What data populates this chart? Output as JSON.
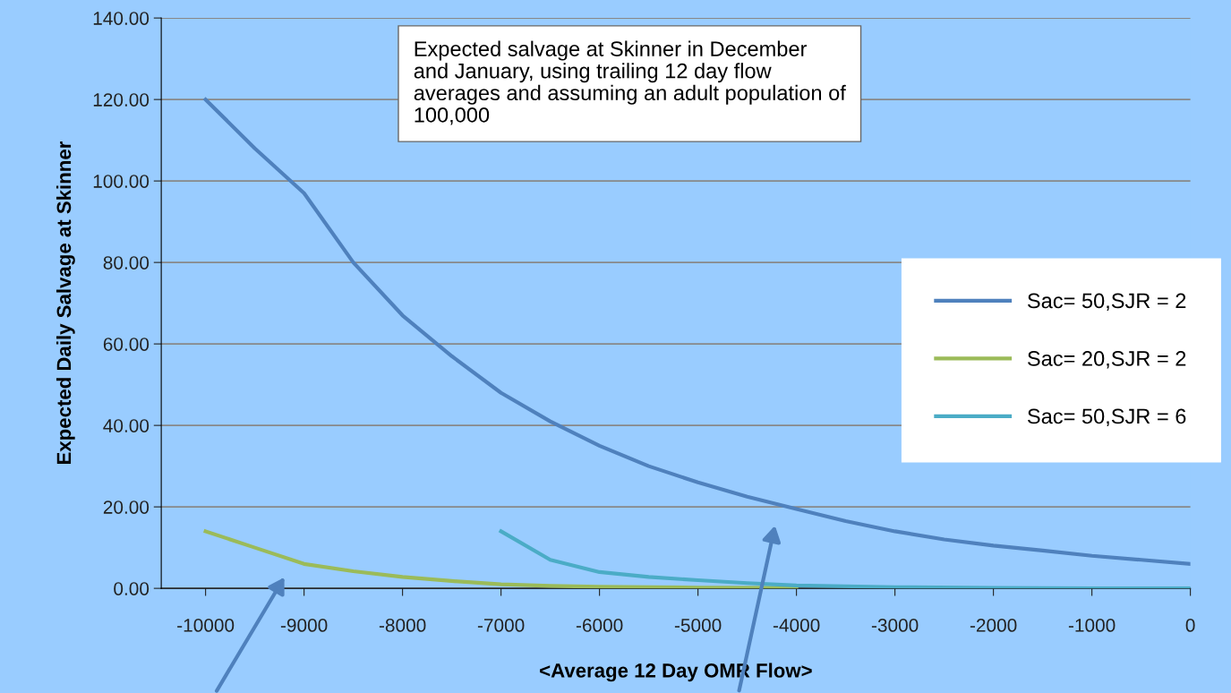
{
  "chart_data": {
    "type": "line",
    "xlabel": "<Average 12 Day OMR Flow>",
    "ylabel": "Expected Daily Salvage at Skinner",
    "annotations": [
      "Expected salvage at Skinner in December\nand January, using trailing 12 day flow\naverages and assuming an adult population of\n100,000"
    ],
    "xlim": [
      -10450,
      0
    ],
    "xticks": [
      -10000,
      -9000,
      -8000,
      -7000,
      -6000,
      -5000,
      -4000,
      -3000,
      -2000,
      -1000,
      0
    ],
    "ylim": [
      0,
      140
    ],
    "yticks": [
      {
        "value": 0,
        "label": "0.00"
      },
      {
        "value": 20,
        "label": "20.00"
      },
      {
        "value": 40,
        "label": "40.00"
      },
      {
        "value": 60,
        "label": "60.00"
      },
      {
        "value": 80,
        "label": "80.00"
      },
      {
        "value": 100,
        "label": "100.00"
      },
      {
        "value": 120,
        "label": "120.00"
      },
      {
        "value": 140,
        "label": "140.00"
      }
    ],
    "grid": "y",
    "legend": "right",
    "marker": "none",
    "line_style": "solid",
    "series": [
      {
        "name": "Sac= 50,SJR = 2",
        "color": "#4f81bd",
        "x": [
          -10000,
          -9500,
          -9000,
          -8500,
          -8000,
          -7500,
          -7000,
          -6500,
          -6000,
          -5500,
          -5000,
          -4500,
          -4000,
          -3500,
          -3000,
          -2500,
          -2000,
          -1500,
          -1000,
          -500,
          0
        ],
        "values": [
          120,
          108,
          97,
          80,
          67,
          57,
          48,
          41,
          35,
          30,
          26,
          22.5,
          19.5,
          16.5,
          14,
          12,
          10.5,
          9.3,
          8,
          7,
          6
        ]
      },
      {
        "name": "Sac= 20,SJR = 2",
        "color": "#9bbb59",
        "x": [
          -10000,
          -9500,
          -9000,
          -8500,
          -8000,
          -7500,
          -7000,
          -6500,
          -6000,
          -5000,
          -4000
        ],
        "values": [
          14,
          10,
          6,
          4.2,
          2.8,
          1.8,
          1,
          0.6,
          0.4,
          0.2,
          0.1
        ]
      },
      {
        "name": "Sac= 50,SJR = 6",
        "color": "#4bacc6",
        "x": [
          -7000,
          -6500,
          -6000,
          -5500,
          -5000,
          -4500,
          -4000,
          -3000,
          -2000,
          -1000,
          0
        ],
        "values": [
          14,
          7,
          4,
          2.8,
          2,
          1.3,
          0.7,
          0.3,
          0.1,
          0,
          0
        ]
      }
    ]
  }
}
